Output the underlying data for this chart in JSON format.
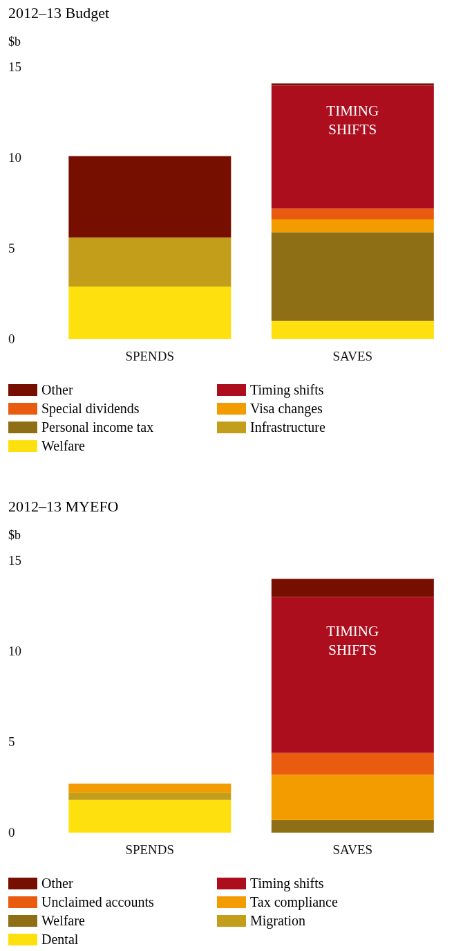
{
  "chart_data": [
    {
      "type": "bar",
      "title": "2012–13 Budget",
      "ylabel": "$b",
      "categories": [
        "SPENDS",
        "SAVES"
      ],
      "stacked": true,
      "ylim": [
        0,
        15
      ],
      "yticks": [
        0,
        5,
        10,
        15
      ],
      "legend": "bottom",
      "annotations": [
        "TIMING\nSHIFTS"
      ],
      "series": [
        {
          "name": "Welfare",
          "color": "#ffe00f",
          "values": [
            2.9,
            1.0
          ]
        },
        {
          "name": "Infrastructure",
          "color": "#c39e1a",
          "values": [
            2.7,
            0
          ]
        },
        {
          "name": "Personal income tax",
          "color": "#8e6f15",
          "values": [
            0,
            4.9
          ]
        },
        {
          "name": "Visa changes",
          "color": "#f39c00",
          "values": [
            0,
            0.7
          ]
        },
        {
          "name": "Special dividends",
          "color": "#e95b0f",
          "values": [
            0,
            0.6
          ]
        },
        {
          "name": "Timing shifts",
          "color": "#ac0e1e",
          "values": [
            0,
            6.8
          ]
        },
        {
          "name": "Other",
          "color": "#770f00",
          "values": [
            4.5,
            0.1
          ]
        }
      ]
    },
    {
      "type": "bar",
      "title": "2012–13 MYEFO",
      "ylabel": "$b",
      "categories": [
        "SPENDS",
        "SAVES"
      ],
      "stacked": true,
      "ylim": [
        0,
        15
      ],
      "yticks": [
        0,
        5,
        10,
        15
      ],
      "legend": "bottom",
      "annotations": [
        "TIMING\nSHIFTS"
      ],
      "series": [
        {
          "name": "Dental",
          "color": "#ffe00f",
          "values": [
            1.8,
            0
          ]
        },
        {
          "name": "Migration",
          "color": "#c39e1a",
          "values": [
            0.4,
            0
          ]
        },
        {
          "name": "Welfare",
          "color": "#8e6f15",
          "values": [
            0,
            0.7
          ]
        },
        {
          "name": "Tax compliance",
          "color": "#f39c00",
          "values": [
            0.5,
            2.5
          ]
        },
        {
          "name": "Unclaimed accounts",
          "color": "#e95b0f",
          "values": [
            0,
            1.2
          ]
        },
        {
          "name": "Timing shifts",
          "color": "#ac0e1e",
          "values": [
            0,
            8.6
          ]
        },
        {
          "name": "Other",
          "color": "#770f00",
          "values": [
            0,
            1.0
          ]
        }
      ]
    }
  ]
}
